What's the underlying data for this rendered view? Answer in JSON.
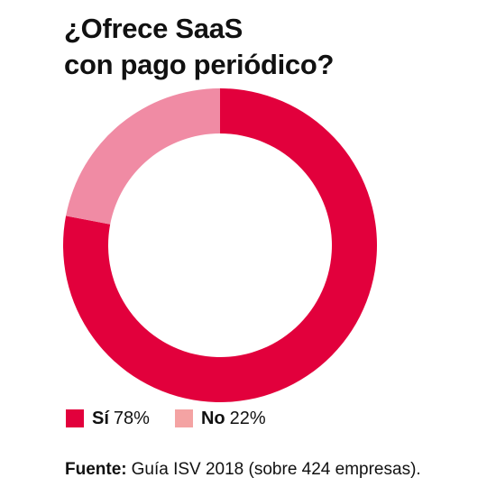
{
  "chart_data": {
    "type": "pie",
    "title": "¿Ofrece SaaS con pago periódico?",
    "title_lines": [
      "¿Ofrece SaaS",
      "con pago periódico?"
    ],
    "categories": [
      "Sí",
      "No"
    ],
    "values": [
      78,
      22
    ],
    "value_labels": [
      "78%",
      "22%"
    ],
    "colors": [
      "#e2003c",
      "#f08ba4"
    ],
    "legend_colors": [
      "#e2003c",
      "#f4a3a3"
    ],
    "donut": true,
    "legend_placement": "bottom-left"
  },
  "source": {
    "label": "Fuente:",
    "text": "Guía ISV 2018 (sobre 424 empresas)."
  }
}
